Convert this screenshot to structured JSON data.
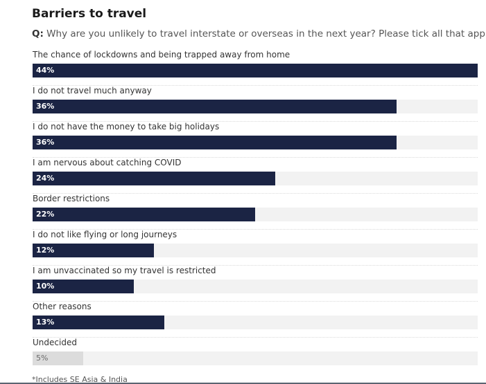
{
  "chart_data": {
    "type": "bar",
    "title": "Barriers to travel",
    "question_prefix": "Q:",
    "question": "Why are you unlikely to travel interstate or overseas in the next year? Please tick all that apply.",
    "orientation": "horizontal",
    "xlim": [
      0,
      44
    ],
    "categories": [
      "The chance of lockdowns and being trapped away from home",
      "I do not travel much anyway",
      "I do not have the money to take big holidays",
      "I am nervous about catching COVID",
      "Border restrictions",
      "I do not like flying or long journeys",
      "I am unvaccinated so my travel is restricted",
      "Other reasons",
      "Undecided"
    ],
    "values": [
      44,
      36,
      36,
      24,
      22,
      12,
      10,
      13,
      5
    ],
    "value_labels": [
      "44%",
      "36%",
      "36%",
      "24%",
      "22%",
      "12%",
      "10%",
      "13%",
      "5%"
    ],
    "highlight": [
      true,
      true,
      true,
      true,
      true,
      true,
      true,
      true,
      false
    ],
    "footnote": "*Includes SE Asia & India",
    "colors": {
      "bar": "#1b2444",
      "bar_muted": "#dcdcdc",
      "track": "#f2f2f2"
    }
  }
}
